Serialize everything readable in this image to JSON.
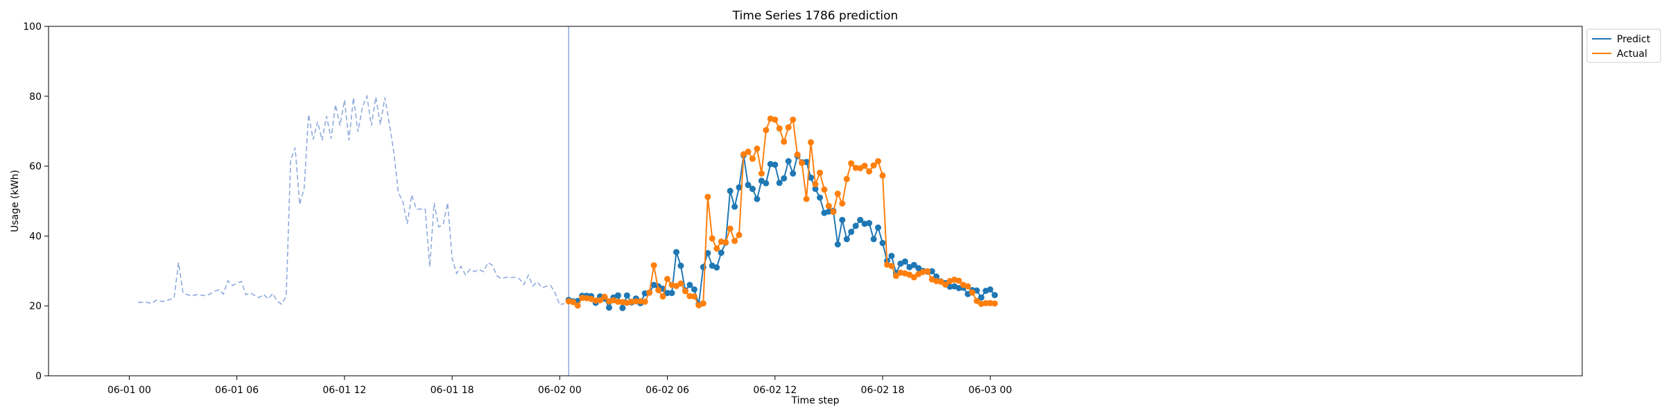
{
  "chart_data": {
    "type": "line",
    "title": "Time Series 1786 prediction",
    "xlabel": "Time step",
    "ylabel": "Usage (kWh)",
    "ylim": [
      0,
      100
    ],
    "yticks": [
      0,
      20,
      40,
      60,
      80,
      100
    ],
    "xlim": [
      -0.1875,
      3.375
    ],
    "xticks": [
      {
        "value": 0,
        "label": "06-01 00"
      },
      {
        "value": 0.25,
        "label": "06-01 06"
      },
      {
        "value": 0.5,
        "label": "06-01 12"
      },
      {
        "value": 0.75,
        "label": "06-01 18"
      },
      {
        "value": 1,
        "label": "06-02 00"
      },
      {
        "value": 1.25,
        "label": "06-02 06"
      },
      {
        "value": 1.5,
        "label": "06-02 12"
      },
      {
        "value": 1.75,
        "label": "06-02 18"
      },
      {
        "value": 2,
        "label": "06-03 00"
      }
    ],
    "x_unit": "days",
    "grid": false,
    "legend_position": "top-right",
    "split_marker_x": 1.0208,
    "history": {
      "color": "#8faadc",
      "style": "dashed",
      "start": 0.0208,
      "step": 0.010417,
      "values": [
        21,
        21,
        21,
        20.7,
        21.6,
        21.3,
        21.3,
        21.8,
        22.3,
        32.4,
        23.7,
        23.2,
        22.9,
        23.2,
        23.1,
        22.9,
        23.4,
        24.2,
        24.6,
        23.4,
        27.2,
        25.8,
        26.5,
        27,
        23.2,
        23.7,
        23,
        22.4,
        23.3,
        22,
        23.6,
        21.3,
        20.5,
        22.8,
        61.7,
        65.3,
        49,
        53.7,
        74.8,
        67.6,
        72.7,
        67.4,
        74.3,
        67.9,
        77.6,
        71.6,
        78.9,
        67.4,
        79.6,
        69.8,
        76.9,
        80,
        71.6,
        79.8,
        71.9,
        79.6,
        72.2,
        64,
        52.4,
        49.9,
        43.5,
        51.8,
        47.7,
        47.7,
        47.7,
        31.2,
        49.5,
        42.6,
        43.3,
        49.5,
        33.6,
        29.3,
        31.3,
        28.8,
        30.5,
        29.8,
        30.4,
        29.8,
        32.4,
        31.6,
        28.6,
        27.8,
        28.2,
        28.1,
        28.2,
        27.8,
        26.1,
        28.8,
        25.7,
        26.9,
        25.2,
        25.6,
        25.8,
        23.6,
        20.3,
        20.7
      ]
    },
    "forecast_x": {
      "start": 1.0208,
      "step": 0.010417
    },
    "series": [
      {
        "name": "Predict",
        "color": "#1f77b4",
        "values": [
          21.7,
          21.3,
          21.4,
          22.9,
          22.9,
          22.8,
          20.9,
          22.7,
          22.1,
          19.5,
          22.4,
          23.0,
          19.4,
          23.0,
          21.0,
          22.1,
          20.8,
          23.6,
          23.8,
          26.0,
          25.6,
          24.9,
          23.7,
          23.7,
          35.4,
          31.5,
          24.4,
          26.0,
          24.7,
          20.5,
          31.1,
          35.1,
          31.5,
          31.0,
          35.2,
          38.1,
          52.9,
          48.4,
          53.9,
          63.1,
          54.6,
          53.5,
          50.6,
          55.8,
          55.1,
          60.6,
          60.4,
          55.2,
          56.5,
          61.4,
          57.9,
          62.9,
          61.1,
          61.2,
          56.7,
          53.5,
          51.0,
          46.6,
          47.0,
          47.2,
          37.6,
          44.6,
          39.1,
          41.2,
          42.9,
          44.6,
          43.5,
          43.7,
          39.1,
          42.4,
          38.0,
          32.9,
          34.3,
          29.4,
          32.1,
          32.7,
          31.1,
          31.7,
          30.8,
          30.0,
          29.8,
          29.9,
          28.4,
          27.0,
          26.5,
          25.5,
          25.6,
          25.1,
          25.2,
          23.4,
          24.5,
          24.4,
          22.4,
          24.3,
          24.7,
          23.1
        ]
      },
      {
        "name": "Actual",
        "color": "#ff7f0e",
        "values": [
          21.3,
          21.1,
          20.1,
          22.3,
          22.2,
          22.0,
          21.5,
          21.6,
          22.6,
          21.3,
          21.6,
          21.2,
          21.1,
          20.9,
          21.2,
          21.3,
          21.3,
          21.2,
          23.8,
          31.6,
          24.5,
          22.7,
          27.7,
          26.0,
          25.7,
          26.4,
          24.2,
          22.8,
          22.7,
          20.2,
          20.7,
          51.2,
          39.3,
          36.4,
          38.4,
          38.2,
          42.1,
          38.6,
          40.3,
          63.4,
          64.1,
          62.1,
          65.0,
          57.9,
          70.3,
          73.6,
          73.3,
          70.8,
          67.0,
          71.1,
          73.3,
          63.3,
          60.9,
          50.6,
          66.8,
          54.8,
          58.1,
          53.3,
          48.6,
          46.9,
          52.1,
          49.3,
          56.3,
          60.8,
          59.5,
          59.4,
          60.1,
          58.5,
          60.2,
          61.4,
          57.3,
          31.8,
          31.4,
          28.6,
          29.5,
          29.3,
          28.9,
          28.2,
          29.1,
          29.7,
          29.9,
          27.6,
          27.1,
          26.9,
          26.1,
          27.1,
          27.5,
          27.2,
          26.0,
          25.6,
          23.8,
          21.4,
          20.6,
          20.8,
          20.8,
          20.7
        ]
      }
    ]
  }
}
